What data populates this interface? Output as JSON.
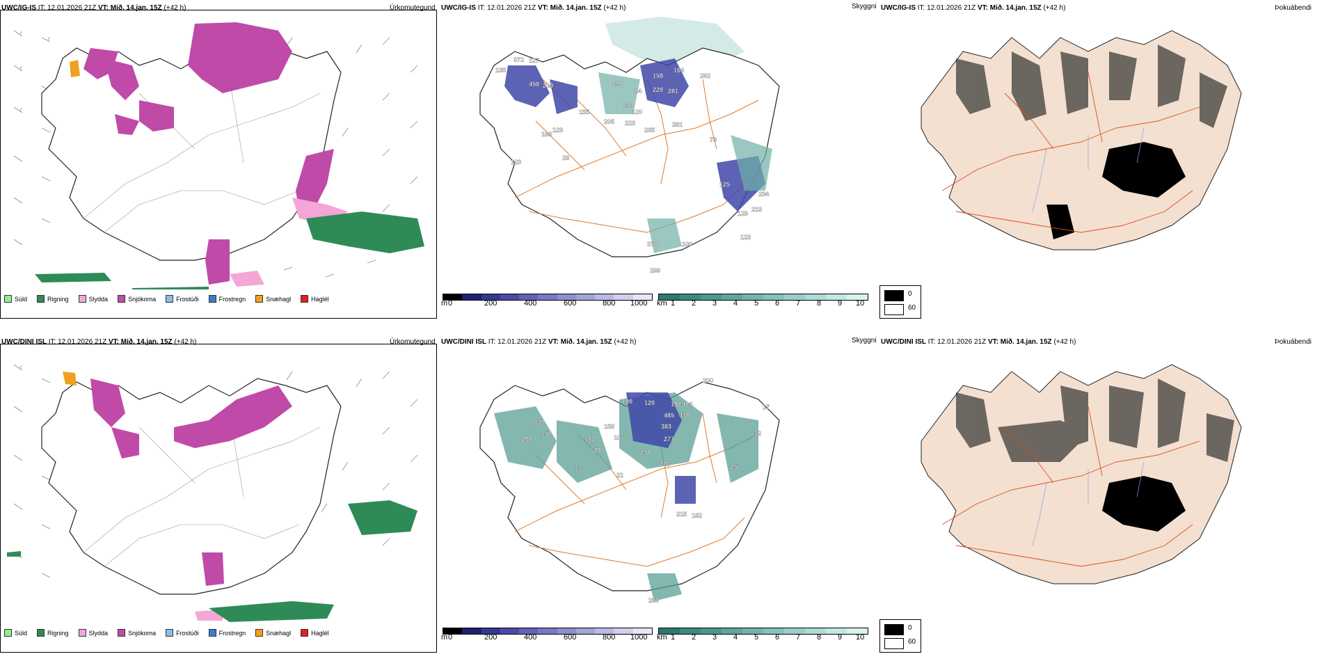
{
  "rows": [
    {
      "model": "UWC/IG-IS",
      "init_label": "IT:",
      "init_time": "12.01.2026 21Z",
      "valid_label": "VT:",
      "valid_time": "Mið. 14.jan. 15Z",
      "lead": "(+42 h)"
    },
    {
      "model": "UWC/DINI ISL",
      "init_label": "IT:",
      "init_time": "12.01.2026 21Z",
      "valid_label": "VT:",
      "valid_time": "Mið. 14.jan. 15Z",
      "lead": "(+42 h)"
    }
  ],
  "panels": {
    "precip_type": "Úrkomutegund",
    "ceiling": "Skyggni",
    "fog": "Þokuábendi"
  },
  "precip_legend": [
    {
      "label": "Súld",
      "color": "#90ee90"
    },
    {
      "label": "Rigning",
      "color": "#2e8b57"
    },
    {
      "label": "Slydda",
      "color": "#f4a6d7"
    },
    {
      "label": "Snjókoma",
      "color": "#c04aa8"
    },
    {
      "label": "Frostúði",
      "color": "#87bde8"
    },
    {
      "label": "Frostregn",
      "color": "#3a7dc8"
    },
    {
      "label": "Snæhagl",
      "color": "#f0a020"
    },
    {
      "label": "Haglél",
      "color": "#e02020"
    }
  ],
  "ceiling_colorbar": {
    "unit": "m",
    "ticks": [
      "0",
      "200",
      "400",
      "600",
      "800",
      "1000"
    ],
    "colors": [
      "#000000",
      "#202070",
      "#303a90",
      "#4a4aa8",
      "#6262b8",
      "#7878c4",
      "#8e8ed0",
      "#a4a4da",
      "#babae4",
      "#d0d0ee",
      "#e6e6f6"
    ]
  },
  "visibility_colorbar": {
    "unit": "km",
    "ticks": [
      "1",
      "2",
      "3",
      "4",
      "5",
      "6",
      "7",
      "8",
      "9",
      "10"
    ],
    "colors": [
      "#2a7a70",
      "#3a8a80",
      "#4c988e",
      "#5fa69c",
      "#72b4aa",
      "#86c2b8",
      "#9acfc6",
      "#aedcd4",
      "#c2e8e2",
      "#d8f2ee"
    ]
  },
  "fog_legend": [
    {
      "label": "0",
      "color": "#000000"
    },
    {
      "label": "60",
      "color": "#ffffff"
    }
  ],
  "ceiling_labels_top": [
    "135",
    "372",
    "127",
    "450",
    "210",
    "298",
    "84",
    "150",
    "164",
    "262",
    "220",
    "281",
    "110",
    "120",
    "123",
    "188",
    "28",
    "205",
    "235",
    "223",
    "281",
    "123",
    "234",
    "213",
    "129",
    "123",
    "125",
    "370",
    "299",
    "100",
    "73",
    "155"
  ],
  "ceiling_labels_bottom": [
    "200",
    "639",
    "150",
    "100",
    "120",
    "158",
    "192",
    "404",
    "485",
    "430",
    "383",
    "32",
    "107",
    "182",
    "230",
    "277",
    "226",
    "20",
    "21",
    "215",
    "182",
    "289",
    "77",
    "25",
    "208",
    "17"
  ]
}
